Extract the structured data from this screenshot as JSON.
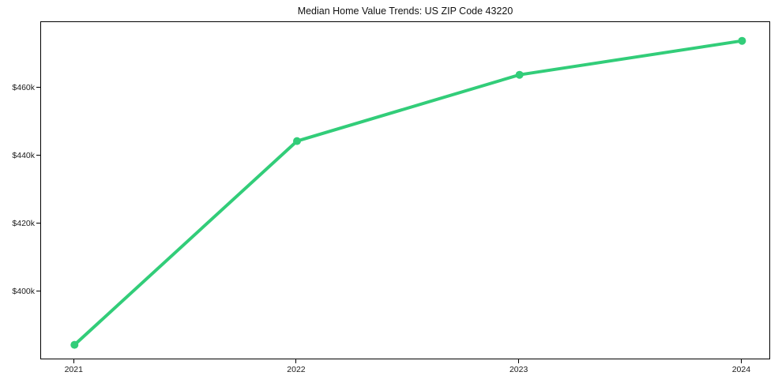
{
  "figure": {
    "background_color": "#ffffff",
    "frame_color": "#000000",
    "tick_label_color": "#1a1a1a"
  },
  "chart_data": {
    "type": "line",
    "title": "Median Home Value Trends: US ZIP Code 43220",
    "xlabel": "",
    "ylabel": "",
    "categories": [
      "2021",
      "2022",
      "2023",
      "2024"
    ],
    "x": [
      2021,
      2022,
      2023,
      2024
    ],
    "series": [
      {
        "name": "Median Home Value",
        "color": "#32cd79",
        "marker": "circle",
        "values": [
          384500,
          444500,
          464000,
          474000
        ]
      }
    ],
    "y_ticks": [
      {
        "value": 400000,
        "label": "$400k"
      },
      {
        "value": 420000,
        "label": "$420k"
      },
      {
        "value": 440000,
        "label": "$440k"
      },
      {
        "value": 460000,
        "label": "$460k"
      }
    ],
    "xlim": [
      2020.85,
      2024.13
    ],
    "ylim": [
      380000,
      479500
    ],
    "grid": false,
    "legend_position": "none"
  }
}
